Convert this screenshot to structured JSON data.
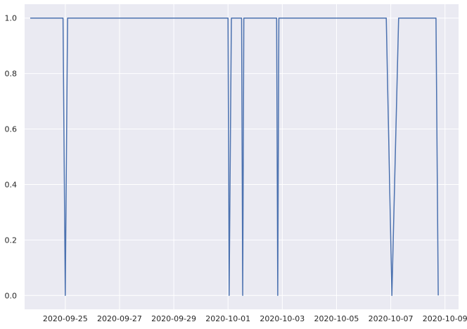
{
  "chart_data": {
    "type": "line",
    "title": "",
    "xlabel": "",
    "ylabel": "",
    "x_is_date": true,
    "xlim": [
      "2020-09-23T12:00",
      "2020-10-09T12:00"
    ],
    "ylim": [
      -0.05,
      1.05
    ],
    "grid": true,
    "background": "#eaeaf2",
    "grid_color": "#ffffff",
    "x_ticks": [
      {
        "value": "2020-09-25",
        "label": "2020-09-25"
      },
      {
        "value": "2020-09-27",
        "label": "2020-09-27"
      },
      {
        "value": "2020-09-29",
        "label": "2020-09-29"
      },
      {
        "value": "2020-10-01",
        "label": "2020-10-01"
      },
      {
        "value": "2020-10-03",
        "label": "2020-10-03"
      },
      {
        "value": "2020-10-05",
        "label": "2020-10-05"
      },
      {
        "value": "2020-10-07",
        "label": "2020-10-07"
      },
      {
        "value": "2020-10-09",
        "label": "2020-10-09"
      }
    ],
    "y_ticks": [
      {
        "value": 0.0,
        "label": "0.0"
      },
      {
        "value": 0.2,
        "label": "0.2"
      },
      {
        "value": 0.4,
        "label": "0.4"
      },
      {
        "value": 0.6,
        "label": "0.6"
      },
      {
        "value": 0.8,
        "label": "0.8"
      },
      {
        "value": 1.0,
        "label": "1.0"
      }
    ],
    "series": [
      {
        "color": "#4c72b0",
        "points": [
          {
            "x": "2020-09-23T17:00",
            "y": 1
          },
          {
            "x": "2020-09-24T22:00",
            "y": 1
          },
          {
            "x": "2020-09-25T00:00",
            "y": 0
          },
          {
            "x": "2020-09-25T02:00",
            "y": 1
          },
          {
            "x": "2020-10-01T00:00",
            "y": 1
          },
          {
            "x": "2020-10-01T01:00",
            "y": 0
          },
          {
            "x": "2020-10-01T03:00",
            "y": 1
          },
          {
            "x": "2020-10-01T12:00",
            "y": 1
          },
          {
            "x": "2020-10-01T13:00",
            "y": 0
          },
          {
            "x": "2020-10-01T14:00",
            "y": 1
          },
          {
            "x": "2020-10-02T19:00",
            "y": 1
          },
          {
            "x": "2020-10-02T20:00",
            "y": 0
          },
          {
            "x": "2020-10-02T21:00",
            "y": 1
          },
          {
            "x": "2020-10-06T20:00",
            "y": 1
          },
          {
            "x": "2020-10-07T01:00",
            "y": 0
          },
          {
            "x": "2020-10-07T07:00",
            "y": 1
          },
          {
            "x": "2020-10-08T16:00",
            "y": 1
          },
          {
            "x": "2020-10-08T18:00",
            "y": 0
          }
        ]
      }
    ]
  }
}
